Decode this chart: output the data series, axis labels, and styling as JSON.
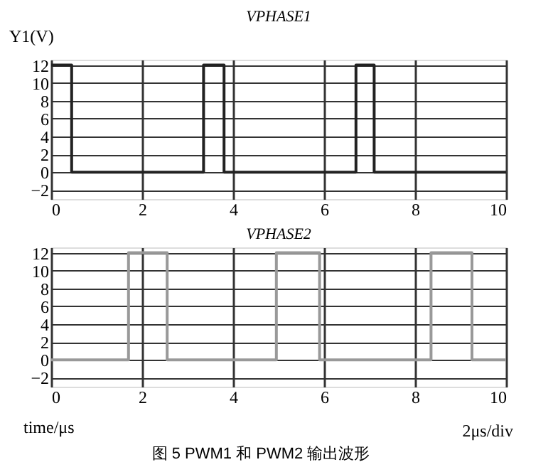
{
  "chart_data": [
    {
      "type": "step",
      "title": "VPHASE1",
      "ylabel": "Y1(V)",
      "xlim": [
        0,
        10
      ],
      "ylim": [
        -3,
        12.6
      ],
      "xticks": [
        0,
        2,
        4,
        6,
        8,
        10
      ],
      "yticks": [
        -2,
        0,
        2,
        4,
        6,
        8,
        10,
        12
      ],
      "grid": true,
      "tick_labels": true,
      "series": [
        {
          "color": "#222222",
          "x": [
            0,
            0.45,
            3.35,
            3.8,
            6.7,
            7.1,
            10
          ],
          "values": [
            12,
            0,
            12,
            0,
            12,
            0,
            0
          ]
        }
      ]
    },
    {
      "type": "step",
      "title": "VPHASE2",
      "xlabel": "time/μs",
      "xlim": [
        0,
        10
      ],
      "ylim": [
        -3,
        12.6
      ],
      "xticks": [
        0,
        2,
        4,
        6,
        8,
        10
      ],
      "yticks": [
        -2,
        0,
        2,
        4,
        6,
        8,
        10,
        12
      ],
      "grid": true,
      "annotations": [
        "2μs/div",
        "图 5 PWM1 和 PWM2 输出波形"
      ],
      "series": [
        {
          "color": "#999999",
          "x": [
            0,
            1.7,
            2.55,
            4.95,
            5.9,
            8.35,
            9.25,
            10
          ],
          "values": [
            0,
            12,
            0,
            12,
            0,
            12,
            0,
            0
          ]
        }
      ]
    }
  ]
}
